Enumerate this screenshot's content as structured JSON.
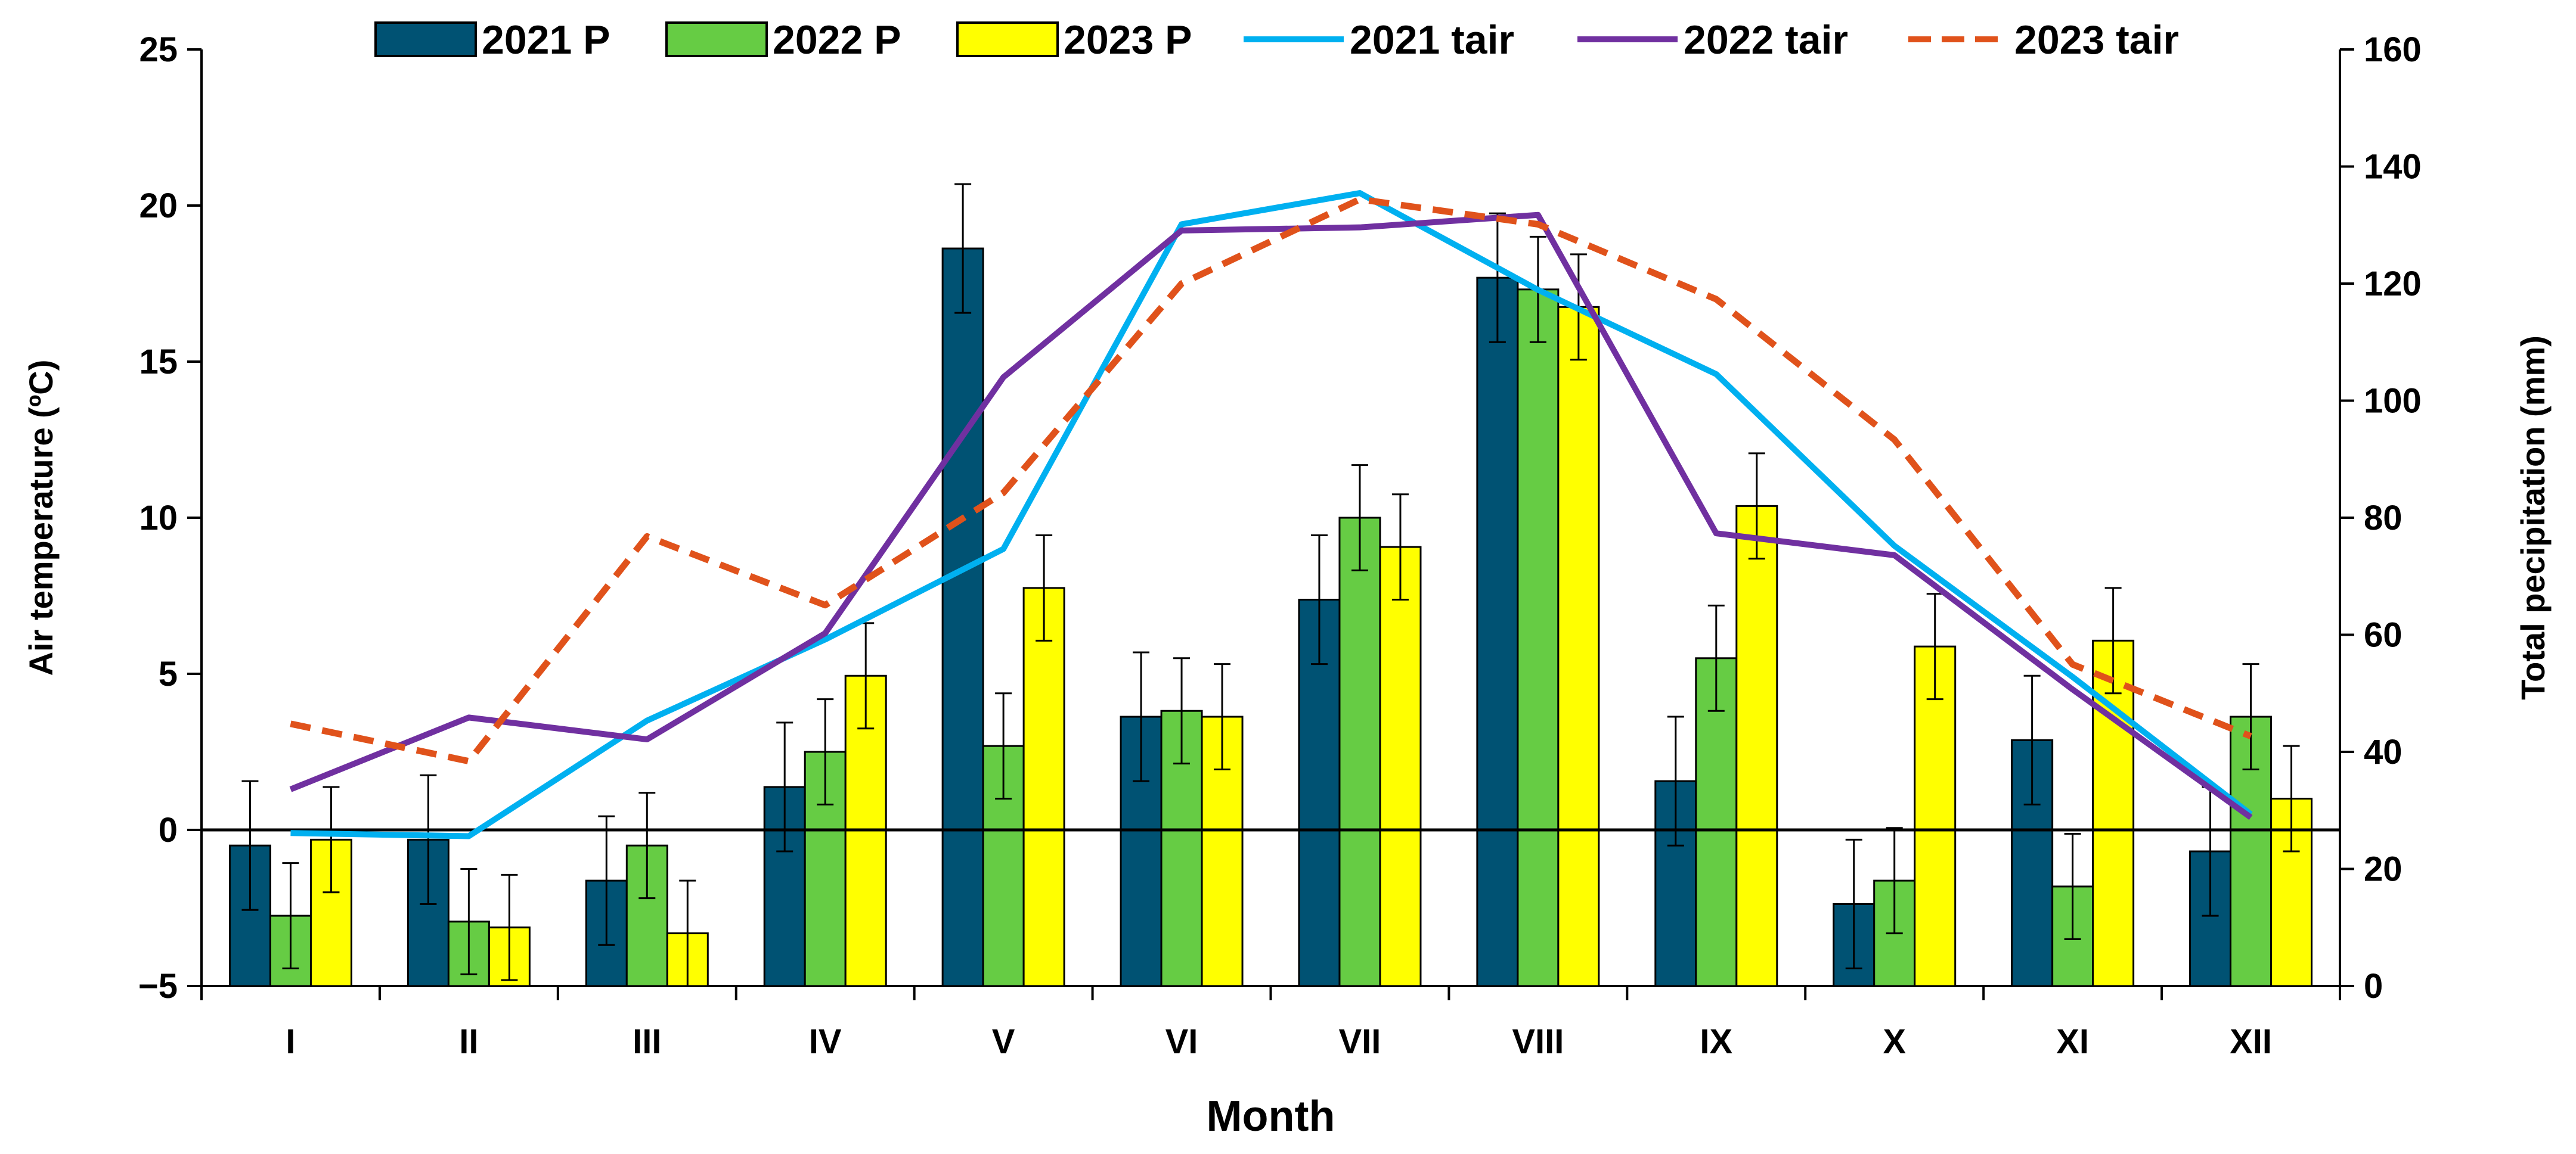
{
  "chart_data": {
    "type": "bar+line",
    "categories": [
      "I",
      "II",
      "III",
      "IV",
      "V",
      "VI",
      "VII",
      "VIII",
      "IX",
      "X",
      "XI",
      "XII"
    ],
    "xlabel": "Month",
    "ylabel_left": "Air temperature (ºC)",
    "ylabel_right": "Total pecipitation (mm)",
    "ylim_left": [
      -5,
      25
    ],
    "yticks_left": [
      -5,
      0,
      5,
      10,
      15,
      20,
      25
    ],
    "ytick_labels_left": [
      "−5",
      "0",
      "5",
      "10",
      "15",
      "20",
      "25"
    ],
    "ylim_right": [
      0,
      160
    ],
    "yticks_right": [
      0,
      20,
      40,
      60,
      80,
      100,
      120,
      140,
      160
    ],
    "ytick_labels_right": [
      "0",
      "20",
      "40",
      "60",
      "80",
      "100",
      "120",
      "140",
      "160"
    ],
    "legend_position": "top",
    "bar_series": [
      {
        "name": "2021 P",
        "color": "#005273",
        "values": [
          24,
          25,
          18,
          34,
          126,
          46,
          66,
          121,
          35,
          14,
          42,
          23
        ],
        "errors": [
          11,
          11,
          11,
          11,
          11,
          11,
          11,
          11,
          11,
          11,
          11,
          11
        ]
      },
      {
        "name": "2022 P",
        "color": "#66CC44",
        "values": [
          12,
          11,
          24,
          40,
          41,
          47,
          80,
          119,
          56,
          18,
          17,
          46
        ],
        "errors": [
          9,
          9,
          9,
          9,
          9,
          9,
          9,
          9,
          9,
          9,
          9,
          9
        ]
      },
      {
        "name": "2023 P",
        "color": "#FFFF00",
        "values": [
          25,
          10,
          9,
          53,
          68,
          46,
          75,
          116,
          82,
          58,
          59,
          32
        ],
        "errors": [
          9,
          9,
          9,
          9,
          9,
          9,
          9,
          9,
          9,
          9,
          9,
          9
        ]
      }
    ],
    "line_series": [
      {
        "name": "2021 tair",
        "color": "#00B0F0",
        "dashed": false,
        "values": [
          -0.1,
          -0.2,
          3.5,
          6.1,
          9.0,
          19.4,
          20.4,
          17.3,
          14.6,
          9.1,
          4.9,
          0.5
        ]
      },
      {
        "name": "2022 tair",
        "color": "#7030A0",
        "dashed": false,
        "values": [
          1.3,
          3.6,
          2.9,
          6.3,
          14.5,
          19.2,
          19.3,
          19.7,
          9.5,
          8.8,
          4.5,
          0.4
        ]
      },
      {
        "name": "2023 tair",
        "color": "#E0521B",
        "dashed": true,
        "values": [
          3.4,
          2.2,
          9.4,
          7.2,
          10.8,
          17.5,
          20.2,
          19.4,
          17.0,
          12.5,
          5.3,
          3.0
        ]
      }
    ]
  }
}
